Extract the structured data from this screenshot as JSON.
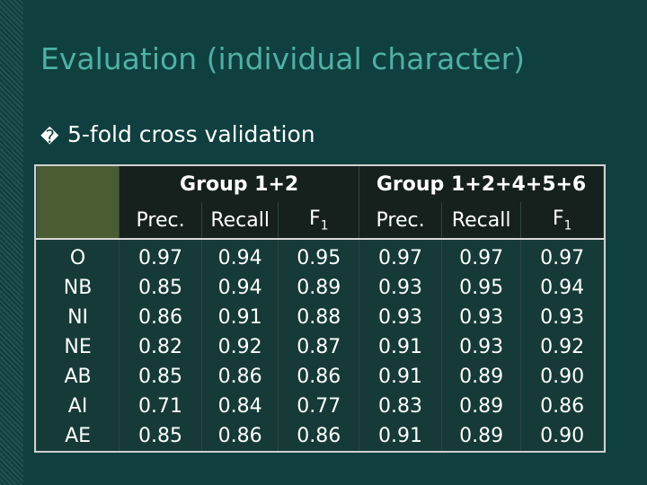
{
  "slide": {
    "title": "Evaluation (individual character)",
    "bullet_marker": "�",
    "bullet": "5-fold cross validation",
    "table": {
      "groups": [
        "Group 1+2",
        "Group 1+2+4+5+6"
      ],
      "subheaders": [
        {
          "text": "Prec."
        },
        {
          "text": "Recall"
        },
        {
          "text": "F",
          "sub": "1"
        },
        {
          "text": "Prec."
        },
        {
          "text": "Recall"
        },
        {
          "text": "F",
          "sub": "1"
        }
      ],
      "rows": [
        [
          "O",
          "0.97",
          "0.94",
          "0.95",
          "0.97",
          "0.97",
          "0.97"
        ],
        [
          "NB",
          "0.85",
          "0.94",
          "0.89",
          "0.93",
          "0.95",
          "0.94"
        ],
        [
          "NI",
          "0.86",
          "0.91",
          "0.88",
          "0.93",
          "0.93",
          "0.93"
        ],
        [
          "NE",
          "0.82",
          "0.92",
          "0.87",
          "0.91",
          "0.93",
          "0.92"
        ],
        [
          "AB",
          "0.85",
          "0.86",
          "0.86",
          "0.91",
          "0.89",
          "0.90"
        ],
        [
          "AI",
          "0.71",
          "0.84",
          "0.77",
          "0.83",
          "0.89",
          "0.86"
        ],
        [
          "AE",
          "0.85",
          "0.86",
          "0.86",
          "0.91",
          "0.89",
          "0.90"
        ]
      ]
    }
  }
}
